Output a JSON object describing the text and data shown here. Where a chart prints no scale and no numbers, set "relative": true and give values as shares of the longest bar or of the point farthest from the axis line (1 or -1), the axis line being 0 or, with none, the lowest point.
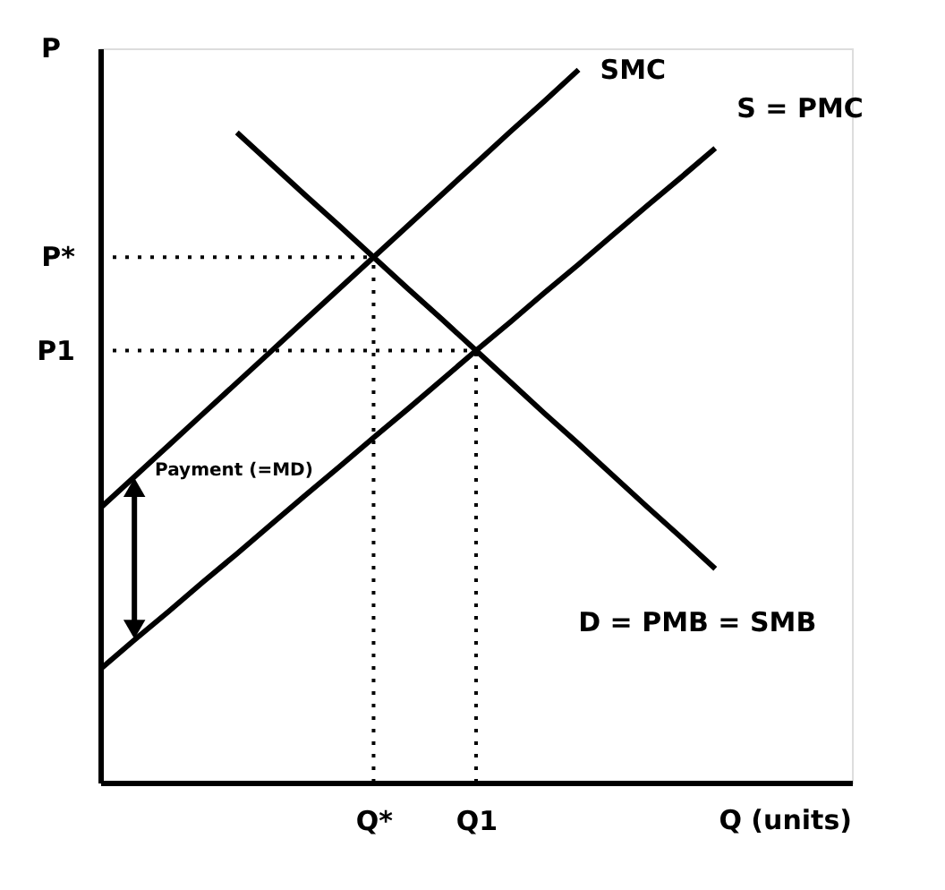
{
  "chart_data": {
    "type": "line",
    "relative": true,
    "ylabel": "P",
    "xlabel": "Q (units)",
    "categories": [
      null,
      null,
      null,
      null,
      null,
      null,
      null,
      null,
      "Q*",
      null,
      null,
      "Q1",
      null,
      null,
      null,
      null,
      null,
      null,
      null,
      null,
      null,
      null,
      null
    ],
    "series": [
      {
        "name": "SMC",
        "color": "#000000",
        "values": [
          0.385,
          0.429,
          0.473,
          0.517,
          0.561,
          0.605,
          0.649,
          0.693,
          0.737,
          0.781,
          0.825,
          0.869,
          0.913,
          0.956,
          1.0,
          null,
          null,
          null,
          null,
          null,
          null,
          null,
          null
        ]
      },
      {
        "name": "S = PMC",
        "color": "#000000",
        "values": [
          0.159,
          0.2,
          0.24,
          0.281,
          0.321,
          0.362,
          0.403,
          0.443,
          0.484,
          0.524,
          0.565,
          0.606,
          0.646,
          0.687,
          0.727,
          0.768,
          0.809,
          0.849,
          0.89,
          null,
          null,
          null,
          null
        ]
      },
      {
        "name": "D = PMB = SMB",
        "color": "#000000",
        "values": [
          null,
          null,
          null,
          null,
          0.912,
          0.868,
          0.824,
          0.781,
          0.737,
          0.693,
          0.65,
          0.606,
          0.562,
          0.518,
          0.475,
          0.431,
          0.387,
          0.344,
          0.3,
          null,
          null,
          null,
          null
        ]
      }
    ],
    "ref_lines": [
      {
        "axis": "y",
        "value": 0.737,
        "label": "P*",
        "line_style": "dotted"
      },
      {
        "axis": "y",
        "value": 0.606,
        "label": "P1",
        "line_style": "dotted"
      },
      {
        "axis": "x",
        "value": "Q*",
        "line_style": "dotted"
      },
      {
        "axis": "x",
        "value": "Q1",
        "line_style": "dotted"
      }
    ],
    "annotations": [
      "Payment (=MD)"
    ]
  }
}
